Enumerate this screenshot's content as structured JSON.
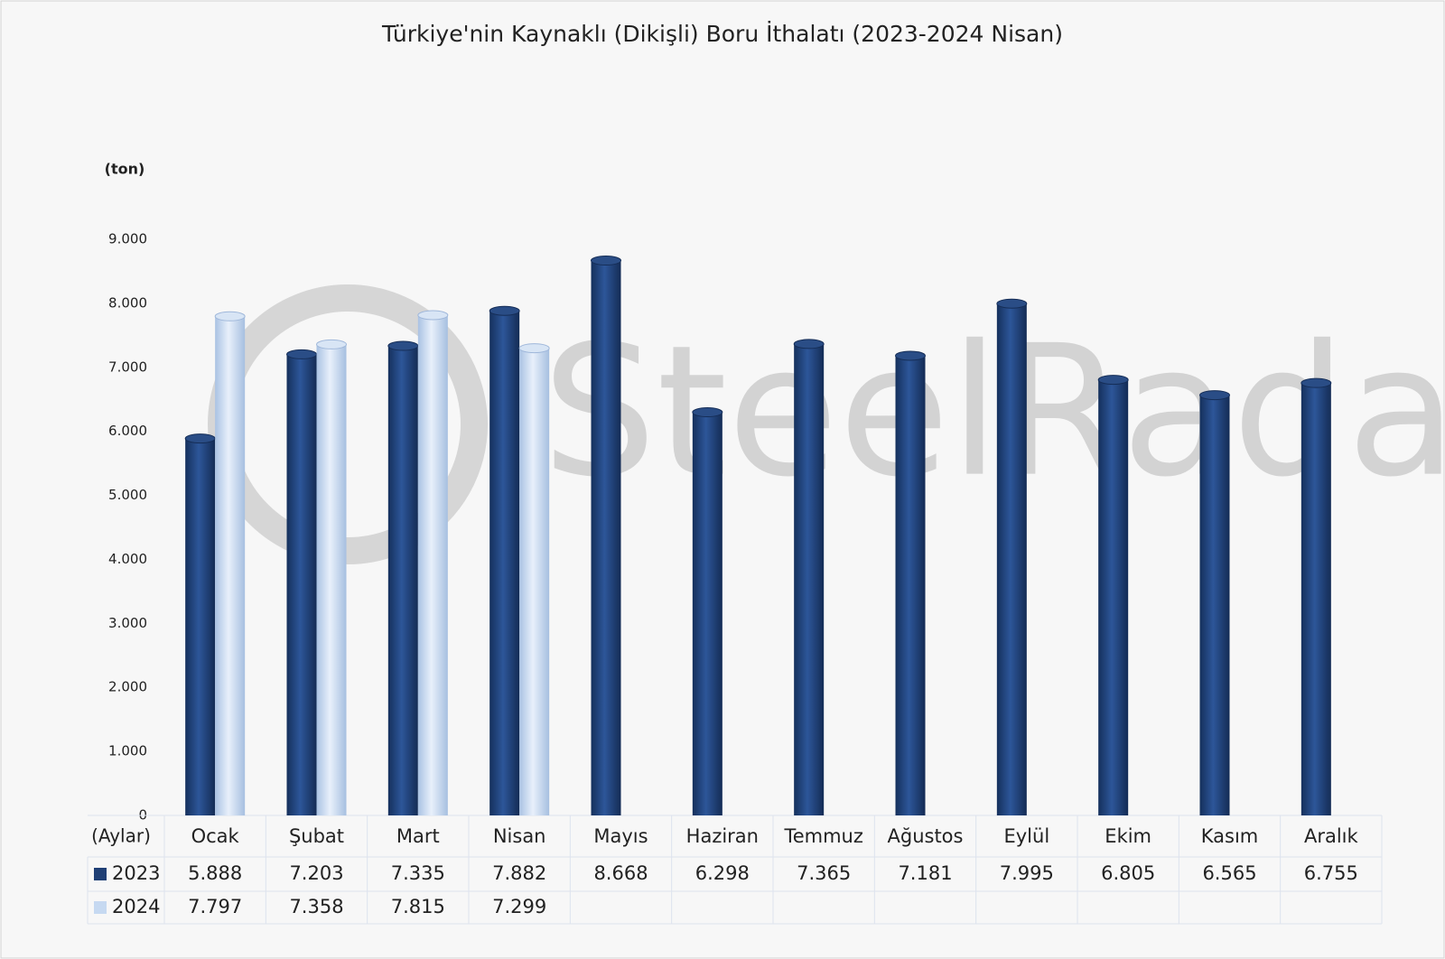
{
  "chart_data": {
    "type": "bar",
    "title": "Türkiye'nin Kaynaklı (Dikişli) Boru İthalatı (2023-2024 Nisan)",
    "y_label": "(ton)",
    "x_label": "(Aylar)",
    "watermark": "SteelRadar",
    "categories": [
      "Ocak",
      "Şubat",
      "Mart",
      "Nisan",
      "Mayıs",
      "Haziran",
      "Temmuz",
      "Ağustos",
      "Eylül",
      "Ekim",
      "Kasım",
      "Aralık"
    ],
    "series": [
      {
        "name": "2023",
        "color": "#1f3f75",
        "values": [
          5888,
          7203,
          7335,
          7882,
          8668,
          6298,
          7365,
          7181,
          7995,
          6805,
          6565,
          6755
        ],
        "value_labels": [
          "5.888",
          "7.203",
          "7.335",
          "7.882",
          "8.668",
          "6.298",
          "7.365",
          "7.181",
          "7.995",
          "6.805",
          "6.565",
          "6.755"
        ]
      },
      {
        "name": "2024",
        "color": "#c6d9f1",
        "values": [
          7797,
          7358,
          7815,
          7299,
          null,
          null,
          null,
          null,
          null,
          null,
          null,
          null
        ],
        "value_labels": [
          "7.797",
          "7.358",
          "7.815",
          "7.299",
          null,
          null,
          null,
          null,
          null,
          null,
          null,
          null
        ]
      }
    ],
    "ylim": [
      0,
      9000
    ],
    "yticks": [
      0,
      {
        "value": 1000,
        "label": "1.000"
      },
      {
        "value": 2000,
        "label": "2.000"
      },
      {
        "value": 3000,
        "label": "3.000"
      },
      {
        "value": 4000,
        "label": "4.000"
      },
      {
        "value": 5000,
        "label": "5.000"
      },
      {
        "value": 6000,
        "label": "6.000"
      },
      {
        "value": 7000,
        "label": "7.000"
      },
      {
        "value": 8000,
        "label": "8.000"
      },
      {
        "value": 9000,
        "label": "9.000"
      }
    ],
    "grid": false
  }
}
